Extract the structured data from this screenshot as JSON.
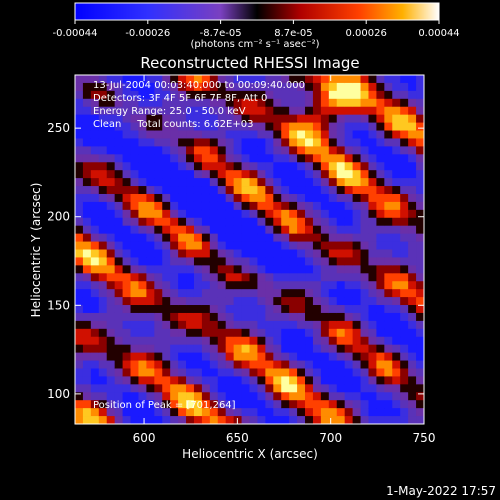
{
  "chart_data": {
    "type": "heatmap",
    "title": "Reconstructed RHESSI Image",
    "xlabel": "Heliocentric X (arcsec)",
    "ylabel": "Heliocentric Y (arcsec)",
    "xlim": [
      563,
      750
    ],
    "ylim": [
      83,
      280
    ],
    "x_ticks": [
      600,
      650,
      700,
      750
    ],
    "y_ticks": [
      100,
      150,
      200,
      250
    ],
    "colorbar": {
      "ticks": [
        "-0.00044",
        "-0.00026",
        "-8.7e-05",
        "8.7e-05",
        "0.00026",
        "0.00044"
      ],
      "unit_label": "(photons cm⁻² s⁻¹ asec⁻²)",
      "range": [
        -0.00044,
        0.00044
      ]
    },
    "annotations": [
      "13-Jul-2004 00:03:40.000 to 00:09:40.000",
      "Detectors: 3F 4F 5F 6F 7F 8F, Att 0",
      "Energy Range: 25.0 - 50.0 keV",
      "Clean     Total counts: 6.62E+03"
    ],
    "peak_label": "Position of Peak = [701,264]",
    "peak": [
      701,
      264
    ],
    "grid": false,
    "legend": "none"
  },
  "footer": {
    "timestamp": "1-May-2022 17:57"
  },
  "colors": {
    "background": "#000000",
    "text": "#ffffff",
    "colormap_negative": [
      "#0000e0",
      "#3a2aff",
      "#6a3ad0"
    ],
    "colormap_positive": [
      "#000000",
      "#b00000",
      "#ff2a00",
      "#ff9a00",
      "#ffff80",
      "#ffffff"
    ]
  }
}
